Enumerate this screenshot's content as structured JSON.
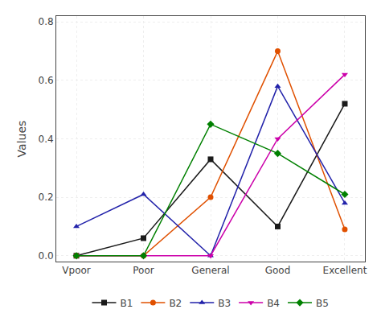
{
  "chart_data": {
    "type": "line",
    "categories": [
      "Vpoor",
      "Poor",
      "General",
      "Good",
      "Excellent"
    ],
    "series": [
      {
        "name": "B1",
        "color": "#1a1a1a",
        "marker": "square",
        "values": [
          0.0,
          0.06,
          0.33,
          0.1,
          0.52
        ]
      },
      {
        "name": "B2",
        "color": "#e05000",
        "marker": "circle",
        "values": [
          0.0,
          0.0,
          0.2,
          0.7,
          0.09
        ]
      },
      {
        "name": "B3",
        "color": "#2222aa",
        "marker": "triangle-up",
        "values": [
          0.1,
          0.21,
          0.0,
          0.58,
          0.18
        ]
      },
      {
        "name": "B4",
        "color": "#cc00aa",
        "marker": "triangle-down",
        "values": [
          0.0,
          0.0,
          0.0,
          0.4,
          0.62
        ]
      },
      {
        "name": "B5",
        "color": "#008000",
        "marker": "diamond",
        "values": [
          0.0,
          0.0,
          0.45,
          0.35,
          0.21
        ]
      }
    ],
    "ylabel": "Values",
    "ylim": [
      -0.02,
      0.82
    ],
    "yticks": [
      {
        "value": 0.0,
        "label": "0.0"
      },
      0.2,
      0.4,
      0.6,
      0.8
    ],
    "grid": true,
    "legend": "bottom"
  }
}
